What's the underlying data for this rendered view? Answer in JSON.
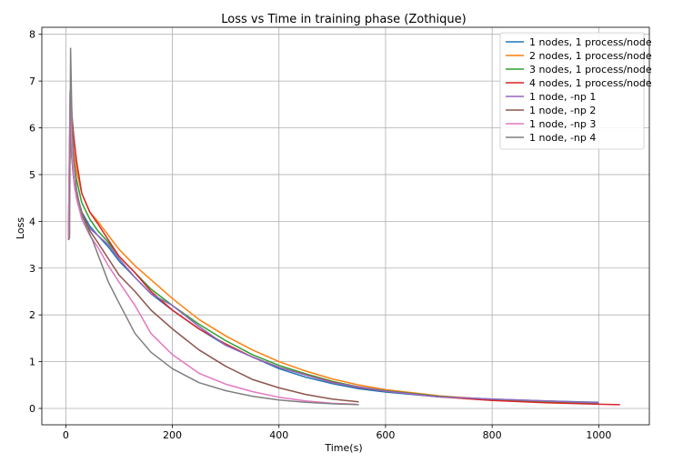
{
  "chart_data": {
    "type": "line",
    "title": "Loss vs Time in training phase (Zothique)",
    "xlabel": "Time(s)",
    "ylabel": "Loss",
    "xlim": [
      -45,
      1095
    ],
    "ylim": [
      -0.35,
      8.15
    ],
    "xticks": [
      0,
      200,
      400,
      600,
      800,
      1000
    ],
    "yticks": [
      0,
      1,
      2,
      3,
      4,
      5,
      6,
      7,
      8
    ],
    "grid": true,
    "legend_position": "top-right",
    "series": [
      {
        "name": "1 nodes, 1 process/node",
        "color": "#1f77b4",
        "x": [
          6,
          8,
          11,
          15,
          20,
          30,
          45,
          60,
          80,
          100,
          130,
          160,
          200,
          250,
          300,
          350,
          400,
          450,
          500,
          550,
          600,
          700,
          800,
          900,
          1000
        ],
        "y": [
          4.2,
          6.75,
          5.4,
          4.9,
          4.6,
          4.2,
          3.9,
          3.7,
          3.45,
          3.15,
          2.8,
          2.45,
          2.1,
          1.7,
          1.35,
          1.1,
          0.85,
          0.67,
          0.53,
          0.42,
          0.35,
          0.25,
          0.2,
          0.16,
          0.13
        ]
      },
      {
        "name": "2 nodes, 1 process/node",
        "color": "#ff7f0e",
        "x": [
          6,
          9,
          12,
          15,
          20,
          30,
          45,
          60,
          80,
          100,
          130,
          160,
          200,
          250,
          300,
          350,
          400,
          450,
          500,
          550,
          600,
          700,
          800,
          900,
          1000
        ],
        "y": [
          4.0,
          6.4,
          6.0,
          5.5,
          5.1,
          4.6,
          4.2,
          4.0,
          3.7,
          3.4,
          3.05,
          2.75,
          2.35,
          1.9,
          1.55,
          1.25,
          1.0,
          0.8,
          0.63,
          0.5,
          0.4,
          0.27,
          0.19,
          0.14,
          0.12
        ]
      },
      {
        "name": "3 nodes, 1 process/node",
        "color": "#2ca02c",
        "x": [
          6,
          9,
          12,
          15,
          20,
          30,
          45,
          60,
          80,
          100,
          130,
          160,
          200,
          250,
          300,
          350,
          400,
          450,
          500,
          550,
          600,
          700,
          800,
          900,
          1000
        ],
        "y": [
          4.0,
          6.5,
          5.9,
          5.3,
          4.9,
          4.4,
          4.05,
          3.8,
          3.55,
          3.25,
          2.9,
          2.55,
          2.2,
          1.8,
          1.45,
          1.15,
          0.92,
          0.74,
          0.58,
          0.46,
          0.38,
          0.26,
          0.18,
          0.13,
          0.1
        ]
      },
      {
        "name": "4 nodes, 1 process/node",
        "color": "#d62728",
        "x": [
          6,
          9,
          12,
          15,
          20,
          30,
          45,
          60,
          80,
          100,
          130,
          160,
          200,
          250,
          300,
          350,
          400,
          450,
          500,
          550,
          600,
          700,
          800,
          900,
          1000,
          1040
        ],
        "y": [
          4.0,
          6.6,
          6.2,
          5.8,
          5.3,
          4.6,
          4.2,
          3.95,
          3.6,
          3.25,
          2.9,
          2.5,
          2.1,
          1.7,
          1.38,
          1.1,
          0.88,
          0.72,
          0.56,
          0.45,
          0.37,
          0.25,
          0.17,
          0.12,
          0.09,
          0.08
        ]
      },
      {
        "name": "1 node, -np 1",
        "color": "#9467bd",
        "x": [
          5,
          6,
          8,
          10,
          13,
          17,
          22,
          30,
          45,
          60,
          80,
          100,
          130,
          160,
          200,
          250,
          300,
          350,
          400,
          500,
          600,
          700,
          800,
          900,
          1000
        ],
        "y": [
          3.8,
          4.6,
          6.3,
          5.6,
          5.1,
          4.7,
          4.4,
          4.1,
          3.85,
          3.7,
          3.5,
          3.2,
          2.8,
          2.45,
          2.2,
          1.75,
          1.35,
          1.1,
          0.88,
          0.55,
          0.37,
          0.25,
          0.2,
          0.16,
          0.12
        ]
      },
      {
        "name": "1 node, -np 2",
        "color": "#8c564b",
        "x": [
          5,
          6,
          8,
          10,
          12,
          15,
          20,
          30,
          45,
          60,
          80,
          100,
          130,
          160,
          200,
          250,
          300,
          350,
          400,
          450,
          500,
          550
        ],
        "y": [
          3.6,
          4.8,
          6.3,
          5.8,
          5.3,
          4.9,
          4.6,
          4.2,
          3.8,
          3.55,
          3.2,
          2.85,
          2.5,
          2.1,
          1.7,
          1.25,
          0.9,
          0.62,
          0.44,
          0.3,
          0.2,
          0.14
        ]
      },
      {
        "name": "1 node, -np 3",
        "color": "#e377c2",
        "x": [
          5,
          6,
          8,
          10,
          12,
          15,
          20,
          30,
          45,
          60,
          80,
          100,
          130,
          160,
          200,
          250,
          300,
          350,
          400,
          450,
          500,
          545
        ],
        "y": [
          3.6,
          5.0,
          6.8,
          6.0,
          5.4,
          4.9,
          4.5,
          4.05,
          3.7,
          3.45,
          3.05,
          2.7,
          2.2,
          1.6,
          1.15,
          0.75,
          0.52,
          0.36,
          0.24,
          0.16,
          0.11,
          0.09
        ]
      },
      {
        "name": "1 node, -np 4",
        "color": "#7f7f7f",
        "x": [
          5,
          7,
          9,
          11,
          13,
          16,
          20,
          25,
          30,
          40,
          50,
          60,
          70,
          80,
          100,
          130,
          160,
          200,
          250,
          300,
          350,
          400,
          450,
          500,
          550
        ],
        "y": [
          3.6,
          3.65,
          7.7,
          6.5,
          5.8,
          5.2,
          4.7,
          4.4,
          4.15,
          3.85,
          3.6,
          3.3,
          3.0,
          2.7,
          2.25,
          1.6,
          1.2,
          0.85,
          0.55,
          0.38,
          0.26,
          0.18,
          0.13,
          0.1,
          0.08
        ]
      }
    ]
  }
}
